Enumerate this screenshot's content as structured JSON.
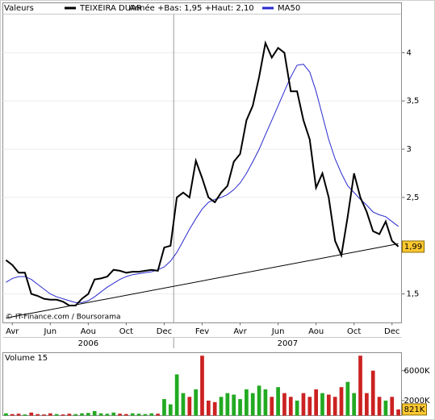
{
  "chart_data": [
    {
      "type": "line",
      "legend_title": "Valeurs",
      "subtitle": "Année +Bas: 1,95 +Haut: 2,10",
      "annotation": "© IT-Finance.com / Boursorama",
      "categories": [
        null,
        "Avr",
        null,
        null,
        null,
        null,
        null,
        "Jun",
        null,
        null,
        null,
        null,
        null,
        "Aou",
        null,
        null,
        null,
        null,
        null,
        "Oct",
        null,
        null,
        null,
        null,
        null,
        "Dec",
        null,
        null,
        null,
        null,
        null,
        "Fev",
        null,
        null,
        null,
        null,
        null,
        "Avr",
        null,
        null,
        null,
        null,
        null,
        "Jun",
        null,
        null,
        null,
        null,
        null,
        "Aou",
        null,
        null,
        null,
        null,
        null,
        "Oct",
        null,
        null,
        null,
        null,
        null,
        "Dec",
        null
      ],
      "years": [
        "2006",
        "2007"
      ],
      "series": [
        {
          "name": "TEIXEIRA DUAR",
          "color": "#000000",
          "values": [
            1.85,
            1.8,
            1.72,
            1.72,
            1.5,
            1.48,
            1.45,
            1.44,
            1.44,
            1.42,
            1.38,
            1.38,
            1.45,
            1.5,
            1.65,
            1.66,
            1.68,
            1.75,
            1.74,
            1.72,
            1.73,
            1.73,
            1.74,
            1.75,
            1.74,
            1.98,
            2.0,
            2.5,
            2.55,
            2.5,
            2.88,
            2.7,
            2.5,
            2.45,
            2.55,
            2.62,
            2.87,
            2.95,
            3.3,
            3.45,
            3.75,
            4.1,
            3.95,
            4.05,
            4.0,
            3.6,
            3.6,
            3.3,
            3.1,
            2.6,
            2.75,
            2.5,
            2.05,
            1.9,
            2.3,
            2.75,
            2.5,
            2.35,
            2.15,
            2.12,
            2.25,
            2.05,
            1.99
          ]
        },
        {
          "name": "MA50",
          "color": "#2a2ad0",
          "values": [
            1.62,
            1.66,
            1.68,
            1.68,
            1.65,
            1.6,
            1.55,
            1.5,
            1.47,
            1.45,
            1.43,
            1.41,
            1.41,
            1.43,
            1.47,
            1.52,
            1.57,
            1.61,
            1.65,
            1.68,
            1.7,
            1.71,
            1.72,
            1.73,
            1.75,
            1.78,
            1.84,
            1.93,
            2.05,
            2.17,
            2.28,
            2.38,
            2.45,
            2.48,
            2.5,
            2.53,
            2.58,
            2.65,
            2.75,
            2.87,
            3.0,
            3.15,
            3.3,
            3.45,
            3.6,
            3.75,
            3.87,
            3.88,
            3.8,
            3.6,
            3.35,
            3.1,
            2.9,
            2.75,
            2.62,
            2.55,
            2.48,
            2.42,
            2.35,
            2.32,
            2.3,
            2.25,
            2.2
          ]
        }
      ],
      "trendline": {
        "start": 1.25,
        "end": 2.02,
        "color": "#000000"
      },
      "ylim": [
        1.2,
        4.4
      ],
      "yticks": [
        {
          "value": 1.5,
          "label": "1,5"
        },
        {
          "value": 2.5,
          "label": "2,5"
        },
        3,
        {
          "value": 3.5,
          "label": "3,5"
        },
        4
      ],
      "last_value_label": "1,99",
      "grid": true
    },
    {
      "type": "bar",
      "title": "Volume 15",
      "values": [
        300,
        200,
        250,
        150,
        400,
        200,
        150,
        300,
        200,
        150,
        250,
        200,
        300,
        350,
        600,
        300,
        250,
        400,
        250,
        200,
        300,
        250,
        200,
        300,
        250,
        2200,
        1500,
        5500,
        3000,
        2500,
        3500,
        8000,
        2000,
        1800,
        2500,
        3000,
        2800,
        2200,
        3500,
        3000,
        4000,
        3500,
        2500,
        3800,
        3000,
        2500,
        2000,
        3000,
        2500,
        3500,
        3000,
        2800,
        2500,
        3800,
        4500,
        3000,
        8000,
        3000,
        6000,
        2500,
        2000,
        2500,
        821
      ],
      "up_color": "#22aa22",
      "down_color": "#cc2222",
      "ylim": [
        0,
        8400
      ],
      "yticks": [
        {
          "value": 2000,
          "label": "2000K"
        },
        {
          "value": 6000,
          "label": "6000K"
        }
      ],
      "last_value_label": "821K"
    }
  ]
}
